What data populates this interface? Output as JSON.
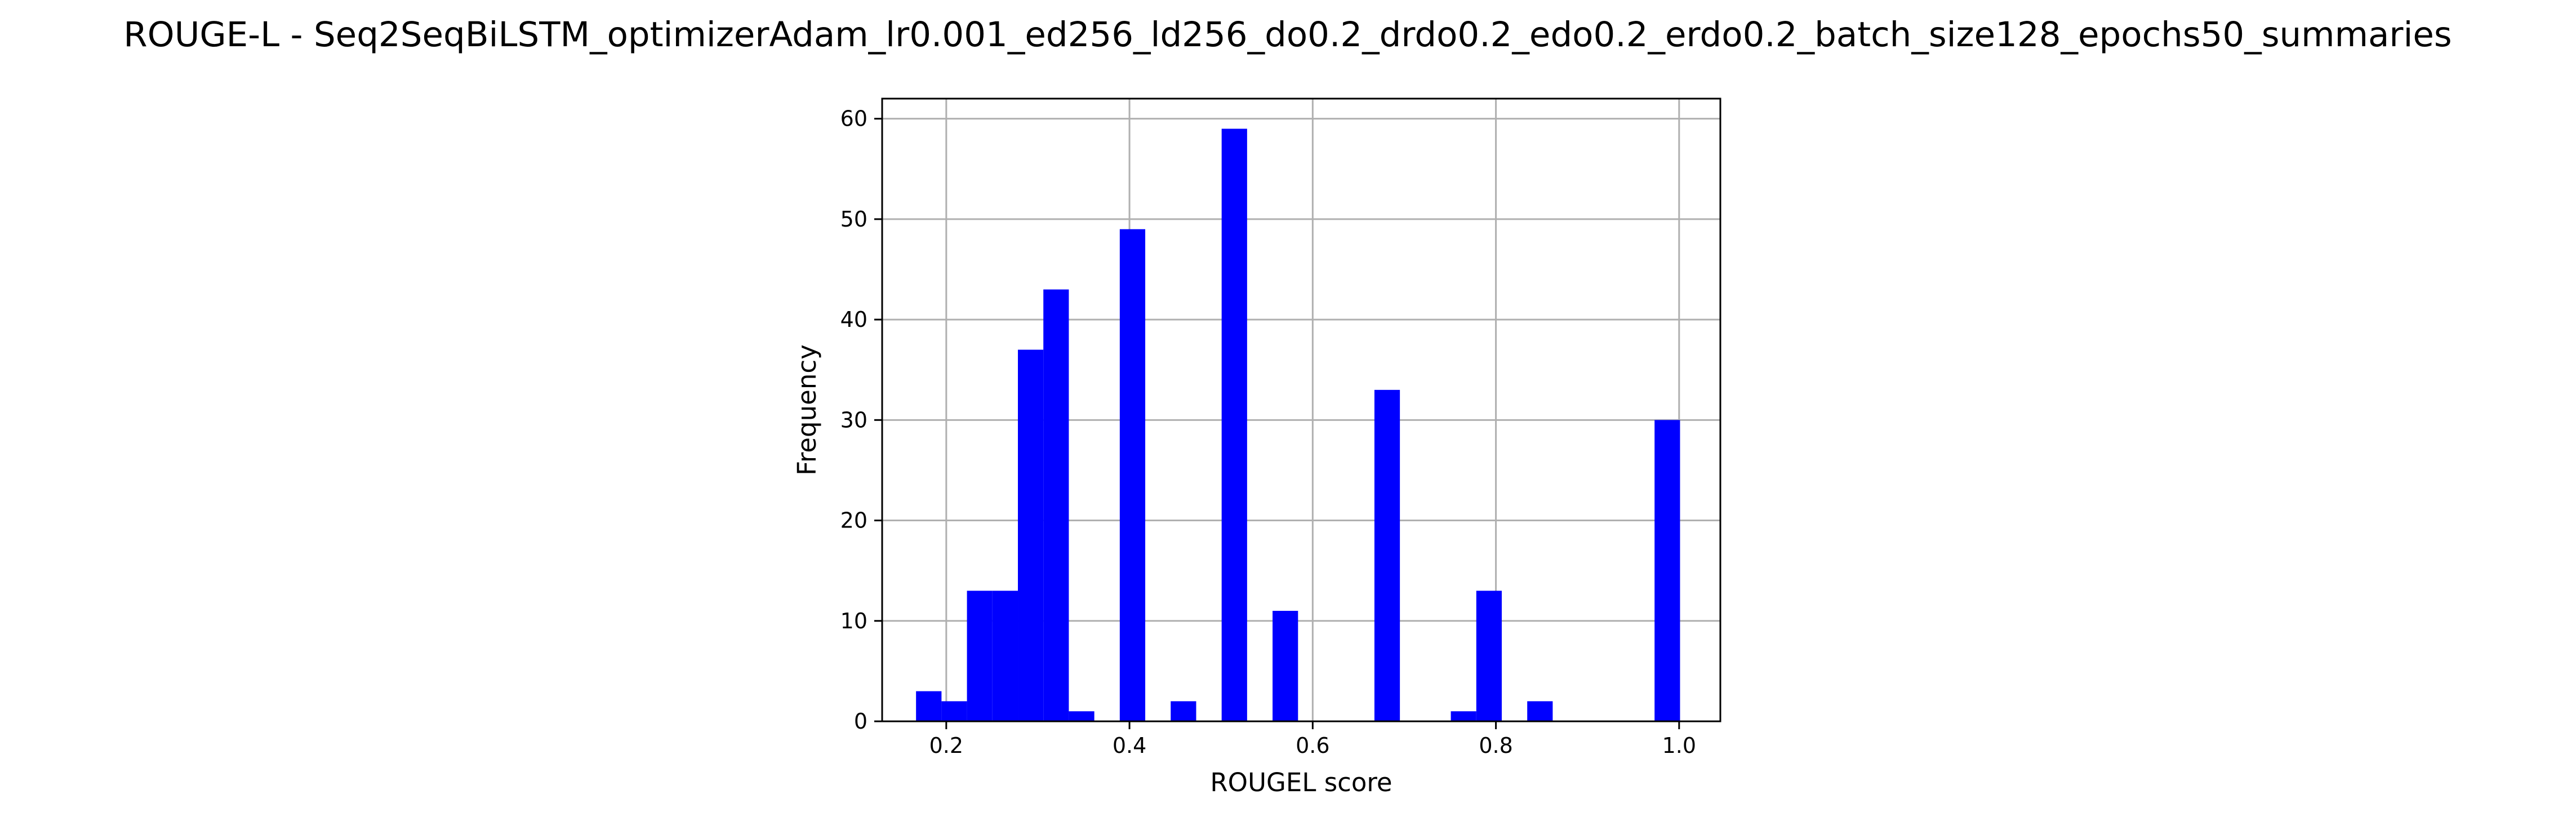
{
  "chart_data": {
    "type": "bar",
    "title": "ROUGE-L - Seq2SeqBiLSTM_optimizerAdam_lr0.001_ed256_ld256_do0.2_drdo0.2_edo0.2_erdo0.2_batch_size128_epochs50_summaries",
    "xlabel": "ROUGEL score",
    "ylabel": "Frequency",
    "xlim": [
      0.13,
      1.045
    ],
    "ylim": [
      0,
      62
    ],
    "xticks": [
      0.2,
      0.4,
      0.6,
      0.8,
      1.0
    ],
    "xtick_labels": [
      "0.2",
      "0.4",
      "0.6",
      "0.8",
      "1.0"
    ],
    "yticks": [
      0,
      10,
      20,
      30,
      40,
      50,
      60
    ],
    "ytick_labels": [
      "0",
      "10",
      "20",
      "30",
      "40",
      "50",
      "60"
    ],
    "grid": true,
    "bar_color": "#0000ff",
    "bin_width": 0.0278,
    "bins": [
      {
        "start": 0.167,
        "count": 3
      },
      {
        "start": 0.1948,
        "count": 2
      },
      {
        "start": 0.2226,
        "count": 13
      },
      {
        "start": 0.2504,
        "count": 13
      },
      {
        "start": 0.2782,
        "count": 37
      },
      {
        "start": 0.306,
        "count": 43
      },
      {
        "start": 0.3338,
        "count": 1
      },
      {
        "start": 0.3616,
        "count": 0
      },
      {
        "start": 0.3894,
        "count": 49
      },
      {
        "start": 0.4172,
        "count": 0
      },
      {
        "start": 0.445,
        "count": 2
      },
      {
        "start": 0.4728,
        "count": 0
      },
      {
        "start": 0.5006,
        "count": 59
      },
      {
        "start": 0.5284,
        "count": 0
      },
      {
        "start": 0.5562,
        "count": 11
      },
      {
        "start": 0.584,
        "count": 0
      },
      {
        "start": 0.6118,
        "count": 0
      },
      {
        "start": 0.6396,
        "count": 0
      },
      {
        "start": 0.6674,
        "count": 33
      },
      {
        "start": 0.6952,
        "count": 0
      },
      {
        "start": 0.723,
        "count": 0
      },
      {
        "start": 0.7508,
        "count": 1
      },
      {
        "start": 0.7786,
        "count": 13
      },
      {
        "start": 0.8064,
        "count": 0
      },
      {
        "start": 0.8342,
        "count": 2
      },
      {
        "start": 0.862,
        "count": 0
      },
      {
        "start": 0.8898,
        "count": 0
      },
      {
        "start": 0.9176,
        "count": 0
      },
      {
        "start": 0.9454,
        "count": 0
      },
      {
        "start": 0.9732,
        "count": 30
      }
    ]
  }
}
